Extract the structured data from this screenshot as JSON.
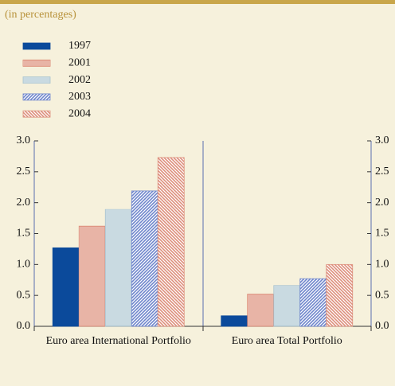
{
  "chart_data": {
    "type": "bar",
    "subtitle": "(in percentages)",
    "categories": [
      "Euro area International Portfolio",
      "Euro area Total  Portfolio"
    ],
    "series": [
      {
        "name": "1997",
        "color": "#0b4a9b",
        "values": [
          1.27,
          0.17
        ]
      },
      {
        "name": "2001",
        "color": "#d9826c",
        "values": [
          1.62,
          0.52
        ]
      },
      {
        "name": "2002",
        "color": "#a9c4cf",
        "values": [
          1.89,
          0.66
        ]
      },
      {
        "name": "2003",
        "color": "#6f86cc",
        "values": [
          2.19,
          0.77
        ]
      },
      {
        "name": "2004",
        "color": "#dd8f7c",
        "values": [
          2.73,
          1.0
        ]
      }
    ],
    "ylim": [
      0,
      3.0
    ],
    "yticks": [
      {
        "value": 0,
        "label": "0.0"
      },
      0.5,
      {
        "value": 1,
        "label": "1.0"
      },
      1.5,
      {
        "value": 2,
        "label": "2.0"
      },
      2.5,
      {
        "value": 3,
        "label": "3.0"
      }
    ]
  }
}
